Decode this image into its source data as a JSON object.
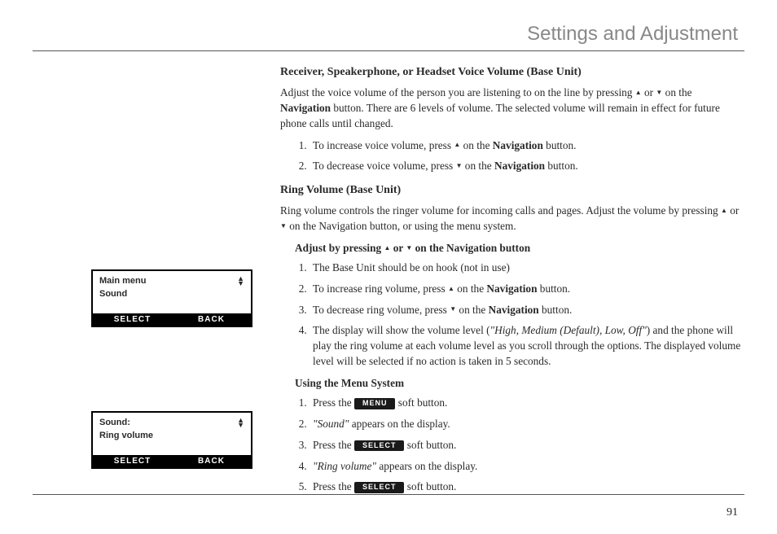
{
  "page": {
    "title": "Settings and Adjustment",
    "number": "91"
  },
  "section1": {
    "heading": "Receiver, Speakerphone, or Headset Voice Volume (Base Unit)",
    "intro_a": "Adjust the voice volume of the person you are listening to on the line by pressing ",
    "intro_b": " or ",
    "intro_c": " on the ",
    "nav": "Navigation",
    "intro_d": " button. There are 6 levels of volume. The selected volume will remain in effect for future phone calls until changed.",
    "step1_a": "To increase voice volume, press ",
    "step1_b": " on the ",
    "step1_c": " button.",
    "step2_a": "To decrease voice volume, press  ",
    "step2_b": " on the ",
    "step2_c": " button."
  },
  "section2": {
    "heading": "Ring Volume (Base Unit)",
    "intro_a": "Ring volume controls the ringer volume for incoming calls and pages. Adjust the volume by pressing ",
    "intro_b": " or ",
    "intro_c": " on the Navigation button, or using the menu system.",
    "sub1_a": "Adjust by pressing ",
    "sub1_b": " or ",
    "sub1_c": " on the Navigation button",
    "s1_1": "The Base Unit should be on hook (not in use)",
    "s1_2a": "To increase ring volume, press ",
    "s1_2b": " on the ",
    "s1_2c": " button.",
    "s1_3a": "To decrease ring volume, press  ",
    "s1_3b": " on the ",
    "s1_3c": " button.",
    "s1_4a": "The display will show the volume level (",
    "s1_4b": "\"High, Medium (Default), Low, Off\"",
    "s1_4c": ") and the phone will play the ring volume at each volume level as you scroll through the options. The displayed volume level will be selected if no action is taken in 5 seconds.",
    "sub2": "Using the Menu System",
    "s2_1a": "Press the ",
    "s2_1b": " soft button.",
    "menu_btn": "MENU",
    "s2_2a": "\"Sound\"",
    "s2_2b": " appears on the display.",
    "s2_3a": "Press the ",
    "s2_3b": " soft button.",
    "select_btn": "SELECT",
    "s2_4a": "\"Ring volume\"",
    "s2_4b": " appears on the display.",
    "s2_5a": "Press the ",
    "s2_5b": " soft button."
  },
  "glyph": {
    "up": "▲",
    "down": "▼"
  },
  "screen1": {
    "line1": "Main menu",
    "line2": "Sound",
    "left": "SELECT",
    "right": "BACK"
  },
  "screen2": {
    "line1": "Sound:",
    "line2": "Ring volume",
    "left": "SELECT",
    "right": "BACK"
  },
  "colors": {
    "title": "#888888",
    "text": "#2a2a2a",
    "rule": "#555555",
    "pill_bg": "#1a1a1a",
    "pill_fg": "#ffffff"
  }
}
